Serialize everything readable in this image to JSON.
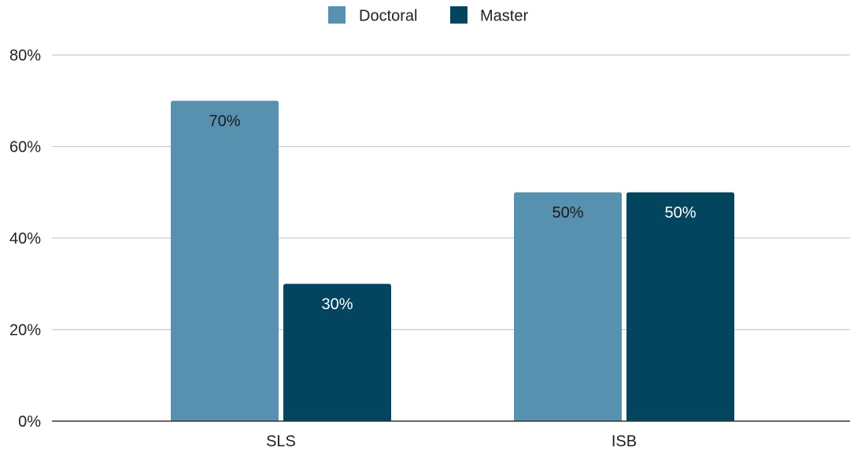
{
  "chart_data": {
    "type": "bar",
    "categories": [
      "SLS",
      "ISB"
    ],
    "series": [
      {
        "name": "Doctoral",
        "values": [
          70,
          50
        ],
        "color": "#5891b0",
        "label_color": "#1a1a1a"
      },
      {
        "name": "Master",
        "values": [
          30,
          50
        ],
        "color": "#03455f",
        "label_color": "#ffffff"
      }
    ],
    "data_labels": [
      [
        "70%",
        "50%"
      ],
      [
        "30%",
        "50%"
      ]
    ],
    "y_ticks": [
      {
        "value": 0,
        "label": "0%"
      },
      {
        "value": 20,
        "label": "20%"
      },
      {
        "value": 40,
        "label": "40%"
      },
      {
        "value": 60,
        "label": "60%"
      },
      {
        "value": 80,
        "label": "80%"
      }
    ],
    "ylim": [
      0,
      80
    ],
    "unit": "%",
    "title": "",
    "xlabel": "",
    "ylabel": "",
    "grid": true,
    "legend_position": "top-center",
    "gridline_color": "#cccccc",
    "axis_color": "#333333"
  }
}
